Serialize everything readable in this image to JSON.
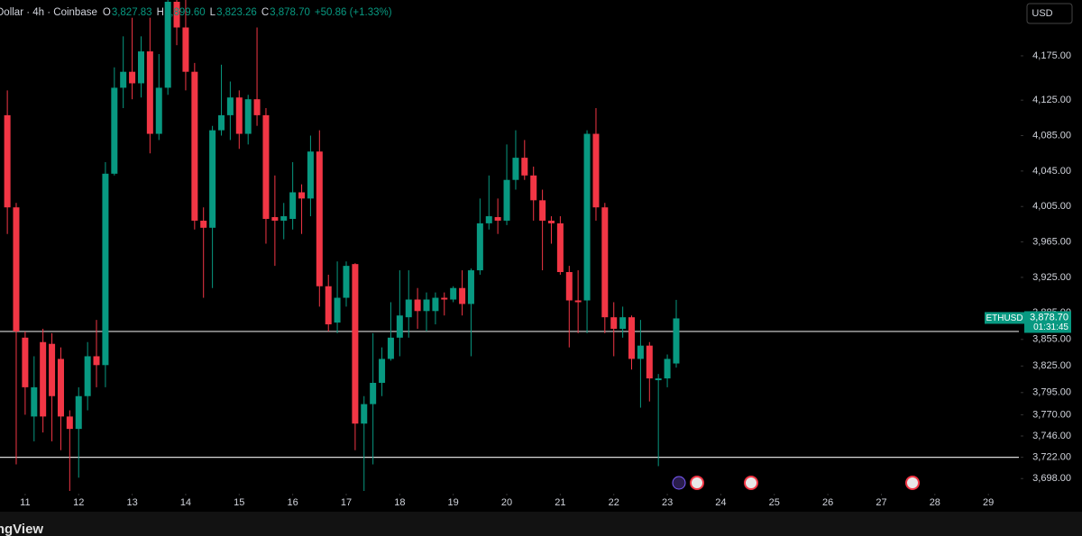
{
  "chart_data": {
    "type": "candlestick",
    "header": {
      "symbol": "Dollar · 4h · Coinbase",
      "ohlc": [
        {
          "key": "O",
          "value": "3,827.83"
        },
        {
          "key": "H",
          "value": "3,899.60"
        },
        {
          "key": "L",
          "value": "3,823.26"
        },
        {
          "key": "C",
          "value": "3,878.70"
        }
      ],
      "change": "+50.86 (+1.33%)"
    },
    "currency": "USD",
    "ticker": "ETHUSD",
    "last_price_label": "3,878.70",
    "countdown": "01:31:45",
    "watermark": "TradingView",
    "up_color": "#089981",
    "down_color": "#f23645",
    "x": [
      10.667,
      10.833,
      11,
      11.167,
      11.333,
      11.5,
      11.667,
      11.833,
      12,
      12.167,
      12.333,
      12.5,
      12.667,
      12.833,
      13,
      13.167,
      13.333,
      13.5,
      13.667,
      13.833,
      14,
      14.167,
      14.333,
      14.5,
      14.667,
      14.833,
      15,
      15.167,
      15.333,
      15.5,
      15.667,
      15.833,
      16,
      16.167,
      16.333,
      16.5,
      16.667,
      16.833,
      17,
      17.167,
      17.333,
      17.5,
      17.667,
      17.833,
      18,
      18.167,
      18.333,
      18.5,
      18.667,
      18.833,
      19,
      19.167,
      19.333,
      19.5,
      19.667,
      19.833,
      20,
      20.167,
      20.333,
      20.5,
      20.667,
      20.833,
      21,
      21.167,
      21.333,
      21.5,
      21.667,
      21.833,
      22,
      22.167,
      22.333,
      22.5,
      22.667,
      22.833,
      23,
      23.167
    ],
    "open": [
      4108,
      4004,
      3857,
      3768,
      3852,
      3850,
      3833,
      3768,
      3754,
      3791,
      3836,
      3826,
      4042,
      4139,
      4157,
      4144,
      4180,
      4087,
      4139,
      4236,
      4207,
      4157,
      3989,
      3981,
      4091,
      4108,
      4128,
      4087,
      4126,
      4108,
      3993,
      3989,
      3991,
      4021,
      4014,
      4067,
      3915,
      3874,
      3902,
      3940,
      3760,
      3782,
      3806,
      3833,
      3857,
      3880,
      3900,
      3887,
      3887,
      3902,
      3900,
      3913,
      3895,
      3933,
      3986,
      3993,
      3989,
      4035,
      4060,
      4040,
      4012,
      3989,
      3986,
      3931,
      3899,
      3899,
      4087,
      4004,
      3880,
      3867,
      3880,
      3833,
      3848,
      3809,
      3811,
      3827.83
    ],
    "high": [
      4136,
      4009,
      3864,
      3836,
      3867,
      3862,
      3846,
      3775,
      3801,
      3852,
      3877,
      4055,
      4162,
      4197,
      4218,
      4197,
      4218,
      4177,
      4238,
      4238,
      4238,
      4167,
      4004,
      4096,
      4165,
      4146,
      4136,
      4131,
      4207,
      4116,
      4040,
      4009,
      4055,
      4030,
      4085,
      4091,
      3928,
      3943,
      3943,
      3941,
      3791,
      3862,
      3846,
      3897,
      3933,
      3933,
      3913,
      3908,
      3908,
      3908,
      3915,
      3933,
      3935,
      4014,
      4040,
      4014,
      4075,
      4091,
      4080,
      4050,
      4024,
      3994,
      3994,
      3938,
      3933,
      4091,
      4116,
      4009,
      3897,
      3892,
      3882,
      3877,
      3852,
      3816,
      3838,
      3899.6
    ],
    "low": [
      3974,
      3714,
      3770,
      3740,
      3750,
      3740,
      3730,
      3684,
      3699,
      3775,
      3801,
      3801,
      4040,
      4116,
      4126,
      4128,
      4065,
      4080,
      4131,
      4187,
      4136,
      3979,
      3902,
      3913,
      4085,
      4080,
      4070,
      4075,
      4096,
      3963,
      3938,
      3968,
      3979,
      3974,
      3994,
      3892,
      3864,
      3862,
      3892,
      3730,
      3684,
      3714,
      3791,
      3831,
      3836,
      3857,
      3867,
      3864,
      3872,
      3882,
      3897,
      3882,
      3836,
      3928,
      3979,
      3974,
      3984,
      4024,
      4035,
      3989,
      3933,
      3963,
      3928,
      3846,
      3862,
      3862,
      3989,
      3862,
      3836,
      3857,
      3821,
      3778,
      3785,
      3712,
      3801,
      3823.26
    ],
    "close": [
      4004,
      3864,
      3801,
      3801,
      3768,
      3791,
      3768,
      3754,
      3791,
      3836,
      3826,
      4042,
      4139,
      4157,
      4144,
      4180,
      4087,
      4139,
      4236,
      4207,
      4157,
      3989,
      3981,
      4091,
      4108,
      4128,
      4087,
      4126,
      4108,
      3991,
      3989,
      3994,
      4021,
      4014,
      4067,
      3915,
      3872,
      3902,
      3938,
      3760,
      3782,
      3806,
      3833,
      3857,
      3882,
      3900,
      3887,
      3900,
      3902,
      3900,
      3913,
      3895,
      3933,
      3986,
      3994,
      3989,
      4035,
      4060,
      4040,
      4012,
      3989,
      3986,
      3931,
      3899,
      3897,
      4087,
      4004,
      3880,
      3867,
      3880,
      3833,
      3848,
      3811,
      3811,
      3833,
      3878.7
    ],
    "hlines": [
      3864,
      3722
    ],
    "hline_color": "#d9d9d9",
    "xlim": [
      10.53,
      29.57
    ],
    "xticks": [
      11,
      12,
      13,
      14,
      15,
      16,
      17,
      18,
      19,
      20,
      21,
      22,
      23,
      24,
      25,
      26,
      27,
      28,
      29
    ],
    "ylim": [
      3684,
      4238
    ],
    "yticks": [
      {
        "value": 4175,
        "label": "4,175.00"
      },
      {
        "value": 4125,
        "label": "4,125.00"
      },
      {
        "value": 4085,
        "label": "4,085.00"
      },
      {
        "value": 4045,
        "label": "4,045.00"
      },
      {
        "value": 4005,
        "label": "4,005.00"
      },
      {
        "value": 3965,
        "label": "3,965.00"
      },
      {
        "value": 3925,
        "label": "3,925.00"
      },
      {
        "value": 3885,
        "label": "3,885.00"
      },
      {
        "value": 3855,
        "label": "3,855.00"
      },
      {
        "value": 3825,
        "label": "3,825.00"
      },
      {
        "value": 3795,
        "label": "3,795.00"
      },
      {
        "value": 3770,
        "label": "3,770.00"
      },
      {
        "value": 3746,
        "label": "3,746.00"
      },
      {
        "value": 3722,
        "label": "3,722.00"
      },
      {
        "value": 3698,
        "label": "3,698.00"
      }
    ]
  }
}
